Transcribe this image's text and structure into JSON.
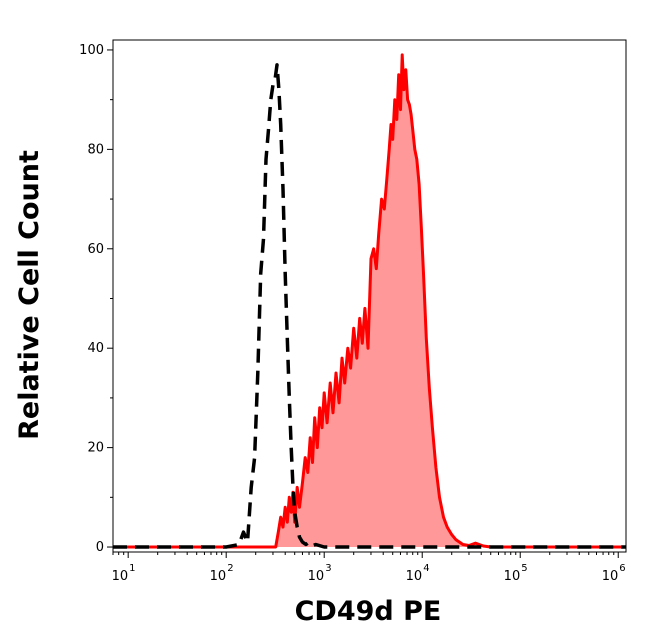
{
  "chart_data": {
    "type": "area",
    "xlabel": "CD49d PE",
    "ylabel": "Relative Cell Count",
    "x_scale": "log",
    "xlim": [
      7,
      1200000
    ],
    "ylim": [
      -1,
      102
    ],
    "y_ticks": [
      "0",
      "20",
      "40",
      "60",
      "80",
      "100"
    ],
    "x_ticks": [
      {
        "base": "10",
        "exp": "1",
        "value": 10
      },
      {
        "base": "10",
        "exp": "2",
        "value": 100
      },
      {
        "base": "10",
        "exp": "3",
        "value": 1000
      },
      {
        "base": "10",
        "exp": "4",
        "value": 10000
      },
      {
        "base": "10",
        "exp": "5",
        "value": 100000
      },
      {
        "base": "10",
        "exp": "6",
        "value": 1000000
      }
    ],
    "grid": false,
    "series": [
      {
        "style": "dashed",
        "color": "#000000",
        "fill": "none",
        "x": [
          7,
          100,
          135,
          150,
          165,
          180,
          195,
          210,
          225,
          240,
          255,
          270,
          285,
          300,
          315,
          330,
          345,
          360,
          380,
          400,
          420,
          440,
          460,
          480,
          500,
          530,
          560,
          600,
          650,
          700,
          760,
          820,
          1000,
          1500,
          3000,
          8000,
          1200000
        ],
        "y": [
          0,
          0,
          0.5,
          3,
          1,
          12,
          18,
          35,
          55,
          62,
          78,
          84,
          90,
          93,
          94,
          97,
          92,
          85,
          72,
          55,
          42,
          30,
          20,
          12,
          7,
          4,
          2,
          1,
          0.5,
          1,
          0.3,
          0.5,
          0,
          0,
          0,
          0,
          0
        ]
      },
      {
        "style": "solid",
        "color": "#ff0000",
        "fill": "#ff9999",
        "x": [
          7,
          320,
          340,
          360,
          380,
          400,
          420,
          440,
          460,
          480,
          500,
          530,
          560,
          600,
          640,
          680,
          720,
          760,
          800,
          850,
          900,
          950,
          1000,
          1070,
          1150,
          1230,
          1320,
          1420,
          1520,
          1620,
          1740,
          1860,
          2000,
          2150,
          2300,
          2450,
          2600,
          2800,
          3000,
          3200,
          3400,
          3600,
          3850,
          4100,
          4350,
          4600,
          4800,
          5000,
          5250,
          5500,
          5750,
          6000,
          6250,
          6500,
          6800,
          7100,
          7400,
          7700,
          8000,
          8400,
          8800,
          9300,
          9800,
          10300,
          11000,
          11800,
          12700,
          13800,
          15000,
          16500,
          18000,
          20000,
          22000,
          24000,
          26000,
          30000,
          35000,
          42000,
          50000,
          70000,
          100000,
          200000,
          1200000
        ],
        "y": [
          0,
          0,
          3,
          6,
          4,
          8,
          5,
          10,
          7,
          11,
          5,
          12,
          8,
          13,
          18,
          15,
          22,
          17,
          26,
          20,
          28,
          24,
          31,
          25,
          33,
          27,
          35,
          29,
          38,
          33,
          40,
          36,
          44,
          38,
          46,
          41,
          48,
          40,
          58,
          60,
          56,
          63,
          70,
          68,
          74,
          80,
          85,
          82,
          90,
          86,
          95,
          88,
          99,
          92,
          96,
          90,
          89,
          87,
          84,
          80,
          78,
          73,
          64,
          55,
          42,
          32,
          24,
          16,
          10,
          6,
          4,
          2.5,
          1.5,
          1,
          0.5,
          0.3,
          0.8,
          0.2,
          0,
          0,
          0,
          0,
          0
        ]
      }
    ]
  }
}
